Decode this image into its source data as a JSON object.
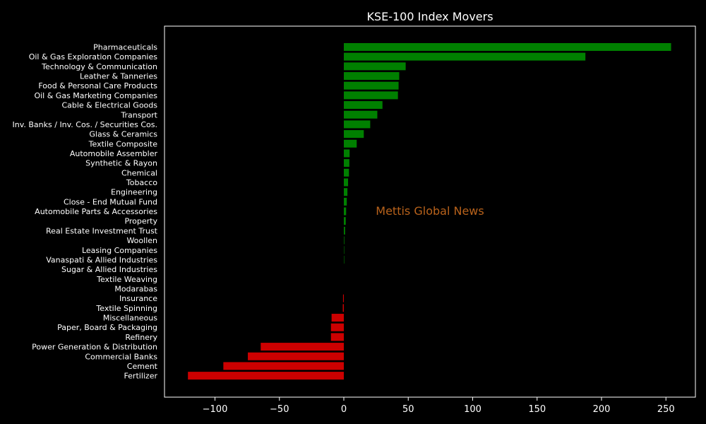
{
  "chart_data": {
    "type": "bar",
    "orientation": "horizontal",
    "title": "KSE-100 Index Movers",
    "watermark": "Mettis Global News",
    "xlabel": "",
    "ylabel": "",
    "xlim": [
      -140,
      273
    ],
    "xticks": [
      -100,
      -50,
      0,
      50,
      100,
      150,
      200,
      250
    ],
    "xtick_labels": [
      "−100",
      "−50",
      "0",
      "50",
      "100",
      "150",
      "200",
      "250"
    ],
    "grid": false,
    "colors": {
      "positive": "#008000",
      "negative": "#cc0000",
      "background": "#000000",
      "text": "#ffffff",
      "watermark": "#b8621b"
    },
    "categories": [
      "Pharmaceuticals",
      "Oil & Gas Exploration Companies",
      "Technology & Communication",
      "Leather & Tanneries",
      "Food & Personal Care Products",
      "Oil & Gas Marketing Companies",
      "Cable & Electrical Goods",
      "Transport",
      "Inv. Banks / Inv. Cos. / Securities Cos.",
      "Glass & Ceramics",
      "Textile Composite",
      "Automobile Assembler",
      "Synthetic & Rayon",
      "Chemical",
      "Tobacco",
      "Engineering",
      "Close - End Mutual Fund",
      "Automobile Parts & Accessories",
      "Property",
      "Real Estate Investment Trust",
      "Woollen",
      "Leasing Companies",
      "Vanaspati & Allied Industries",
      "Sugar & Allied Industries",
      "Textile Weaving",
      "Modarabas",
      "Insurance",
      "Textile Spinning",
      "Miscellaneous",
      "Paper, Board & Packaging",
      "Refinery",
      "Power Generation & Distribution",
      "Commercial Banks",
      "Cement",
      "Fertilizer"
    ],
    "values": [
      254,
      187.5,
      48,
      43,
      42.5,
      42,
      30,
      26,
      20.5,
      15.5,
      10,
      4.5,
      4.3,
      4,
      3.3,
      2.8,
      2.3,
      1.8,
      1.5,
      1.0,
      0.4,
      0.3,
      0.3,
      0,
      0,
      0,
      -0.6,
      -0.8,
      -9.5,
      -10,
      -10,
      -64.5,
      -74.5,
      -93.5,
      -121
    ]
  }
}
